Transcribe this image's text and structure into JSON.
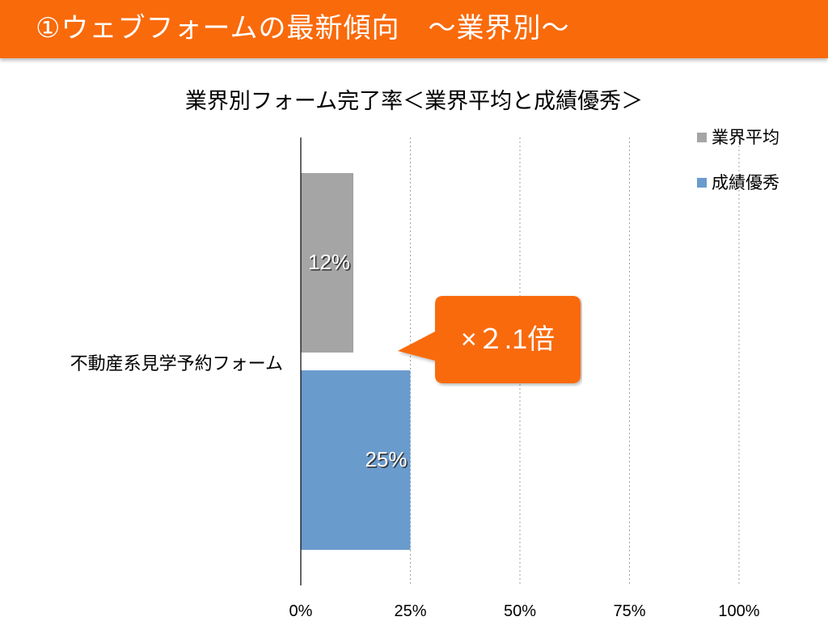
{
  "header": {
    "title": "①ウェブフォームの最新傾向　～業界別～"
  },
  "colors": {
    "header_bg": "#f96a0b",
    "callout_bg": "#f96a0b",
    "series_industry_avg": "#a5a5a5",
    "series_top_performer": "#6a9bcd"
  },
  "callout": {
    "label": "×２.1倍"
  },
  "chart_data": {
    "type": "bar",
    "orientation": "horizontal",
    "title": "業界別フォーム完了率＜業界平均と成績優秀＞",
    "categories": [
      "不動産系見学予約フォーム"
    ],
    "series": [
      {
        "name": "業界平均",
        "values": [
          12
        ],
        "labels": [
          "12%"
        ],
        "color": "#a5a5a5"
      },
      {
        "name": "成績優秀",
        "values": [
          25
        ],
        "labels": [
          "25%"
        ],
        "color": "#6a9bcd"
      }
    ],
    "x_ticks": [
      "0%",
      "25%",
      "50%",
      "75%",
      "100%"
    ],
    "xlim": [
      0,
      100
    ],
    "grid": "vertical dotted",
    "legend": "top-right"
  }
}
